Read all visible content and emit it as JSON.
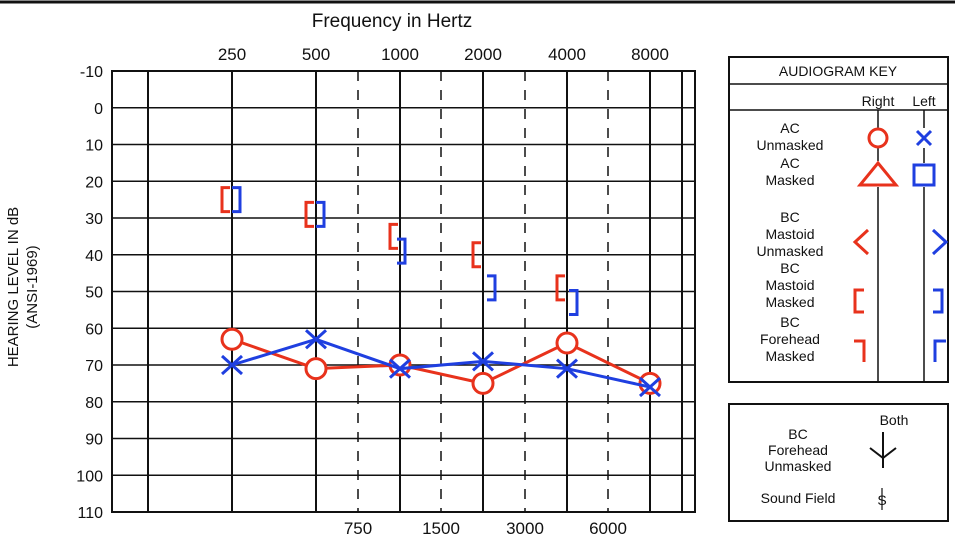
{
  "colors": {
    "right": "#e8321c",
    "left": "#1f3fe0",
    "grid": "#111111"
  },
  "chart_data": {
    "type": "line",
    "title": "Frequency in Hertz",
    "ylabel_line1": "HEARING LEVEL IN dB",
    "ylabel_line2": "(ANSI-1969)",
    "x_top_labels": [
      "250",
      "500",
      "1000",
      "2000",
      "4000",
      "8000"
    ],
    "x_bottom_labels": [
      "750",
      "1500",
      "3000",
      "6000"
    ],
    "y_ticks": [
      "-10",
      "0",
      "10",
      "20",
      "30",
      "40",
      "50",
      "60",
      "70",
      "80",
      "90",
      "100",
      "110"
    ],
    "ylim": [
      -10,
      110
    ],
    "series": [
      {
        "name": "Right AC Unmasked",
        "color": "#e8321c",
        "marker": "circle",
        "x": [
          250,
          500,
          1000,
          2000,
          4000,
          8000
        ],
        "y": [
          63,
          71,
          70,
          75,
          64,
          75
        ]
      },
      {
        "name": "Left AC Unmasked",
        "color": "#1f3fe0",
        "marker": "x",
        "x": [
          250,
          500,
          1000,
          2000,
          4000,
          8000
        ],
        "y": [
          70,
          63,
          71,
          69,
          71,
          76
        ]
      },
      {
        "name": "Right BC Mastoid Masked",
        "color": "#e8321c",
        "marker": "bracket-left",
        "x": [
          250,
          500,
          1000,
          2000,
          4000
        ],
        "y": [
          25,
          29,
          35,
          40,
          49
        ]
      },
      {
        "name": "Left BC Mastoid Masked",
        "color": "#1f3fe0",
        "marker": "bracket-right",
        "x": [
          250,
          500,
          1000,
          2000,
          4000
        ],
        "y": [
          25,
          29,
          39,
          49,
          53
        ]
      }
    ],
    "legend_position": "right"
  },
  "key": {
    "title": "AUDIOGRAM KEY",
    "right": "Right",
    "left": "Left",
    "ac_unmasked": [
      "AC",
      "Unmasked"
    ],
    "ac_masked": [
      "AC",
      "Masked"
    ],
    "bc_mastoid_unmasked": [
      "BC",
      "Mastoid",
      "Unmasked"
    ],
    "bc_mastoid_masked": [
      "BC",
      "Mastoid",
      "Masked"
    ],
    "bc_forehead_masked": [
      "BC",
      "Forehead",
      "Masked"
    ],
    "both": "Both",
    "bc_forehead_unmasked": [
      "BC",
      "Forehead",
      "Unmasked"
    ],
    "sound_field": "Sound Field",
    "sound_field_symbol": "S"
  }
}
